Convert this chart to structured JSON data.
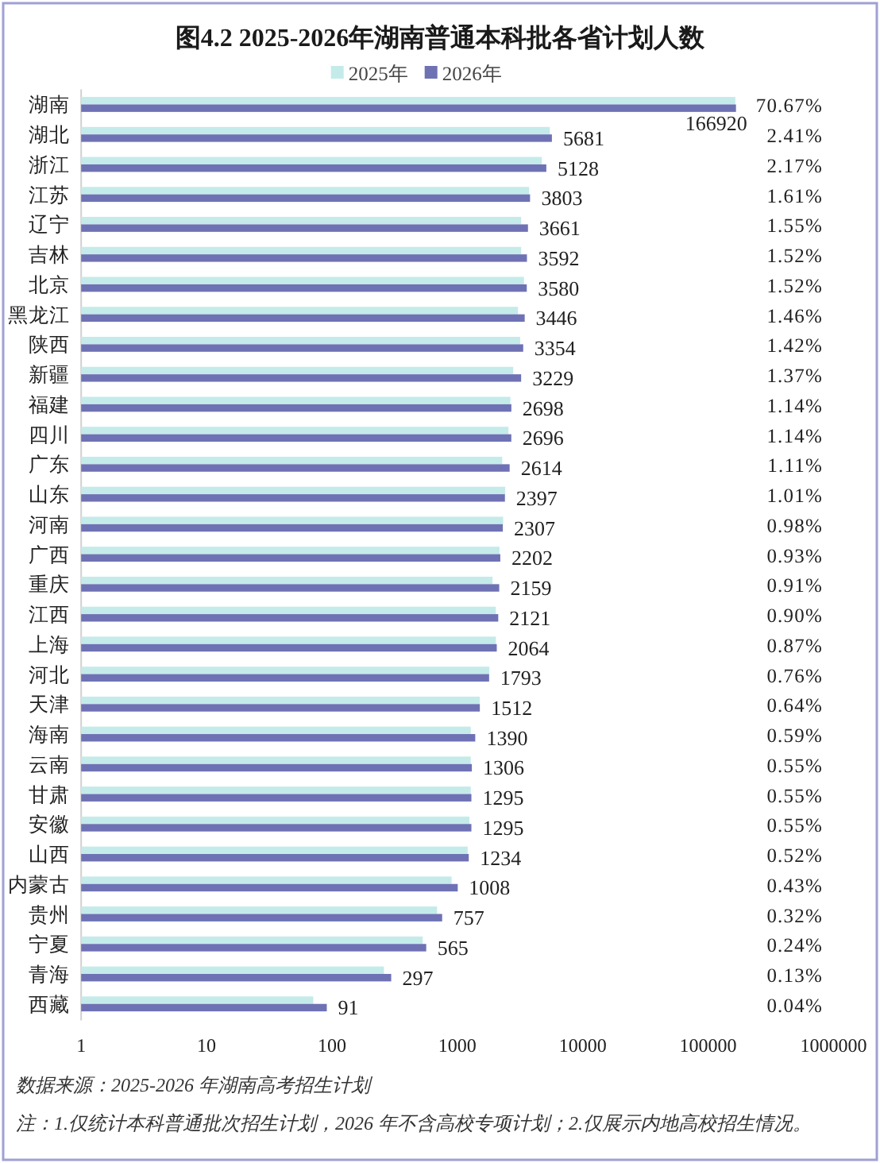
{
  "chart_data": {
    "type": "bar",
    "orientation": "horizontal",
    "title": "图4.2 2025-2026年湖南普通本科批各省计划人数",
    "categories": [
      "湖南",
      "湖北",
      "浙江",
      "江苏",
      "辽宁",
      "吉林",
      "北京",
      "黑龙江",
      "陕西",
      "新疆",
      "福建",
      "四川",
      "广东",
      "山东",
      "河南",
      "广西",
      "重庆",
      "江西",
      "上海",
      "河北",
      "天津",
      "海南",
      "云南",
      "甘肃",
      "安徽",
      "山西",
      "内蒙古",
      "贵州",
      "宁夏",
      "青海",
      "西藏"
    ],
    "series": [
      {
        "name": "2025年",
        "color": "#c4ebe9",
        "values": [
          165000,
          5470,
          4720,
          3740,
          3230,
          3230,
          3400,
          3050,
          3170,
          2790,
          2650,
          2560,
          2280,
          2410,
          2320,
          2170,
          1910,
          2030,
          2030,
          1800,
          1510,
          1280,
          1280,
          1280,
          1250,
          1210,
          900,
          690,
          530,
          260,
          71
        ]
      },
      {
        "name": "2026年",
        "color": "#6e72b4",
        "data_labels": true,
        "values": [
          166920,
          5681,
          5128,
          3803,
          3661,
          3592,
          3580,
          3446,
          3354,
          3229,
          2698,
          2696,
          2614,
          2397,
          2307,
          2202,
          2159,
          2121,
          2064,
          1793,
          1512,
          1390,
          1306,
          1295,
          1295,
          1234,
          1008,
          757,
          565,
          297,
          91
        ]
      }
    ],
    "log": "x",
    "xlim": [
      1,
      1000000
    ],
    "xticks": [
      1,
      10,
      100,
      1000,
      10000,
      100000,
      1000000
    ],
    "legend": "top",
    "annotations": [
      "70.67%",
      "2.41%",
      "2.17%",
      "1.61%",
      "1.55%",
      "1.52%",
      "1.52%",
      "1.46%",
      "1.42%",
      "1.37%",
      "1.14%",
      "1.14%",
      "1.11%",
      "1.01%",
      "0.98%",
      "0.93%",
      "0.91%",
      "0.90%",
      "0.87%",
      "0.76%",
      "0.64%",
      "0.59%",
      "0.55%",
      "0.55%",
      "0.55%",
      "0.52%",
      "0.43%",
      "0.32%",
      "0.24%",
      "0.13%",
      "0.04%",
      "数据来源：2025-2026 年湖南高考招生计划",
      "注：1.仅统计本科普通批次招生计划，2026 年不含高校专项计划；2.仅展示内地高校招生情况。"
    ]
  }
}
